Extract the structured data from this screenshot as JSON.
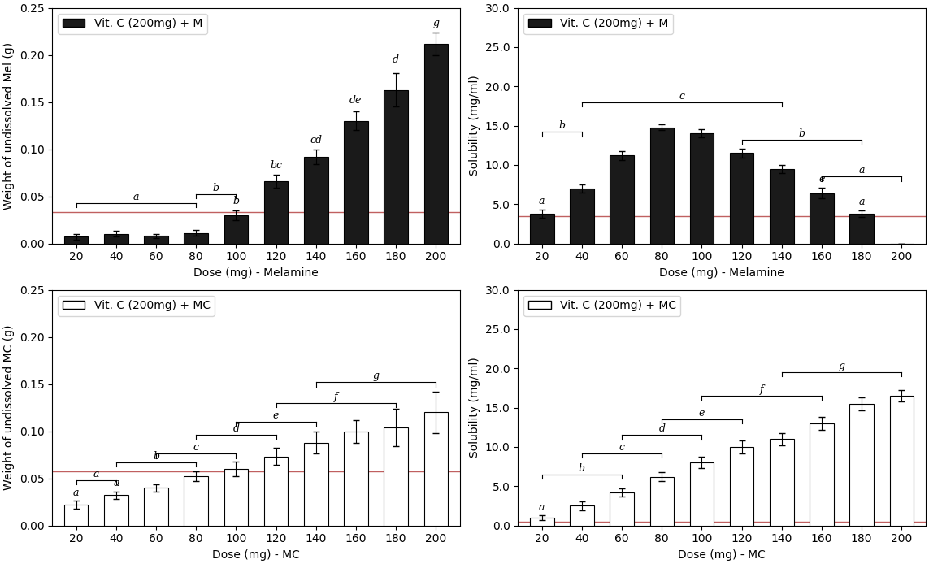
{
  "chart_data": [
    {
      "type": "bar",
      "categories": [
        "20",
        "40",
        "60",
        "80",
        "100",
        "120",
        "140",
        "160",
        "180",
        "200"
      ],
      "series": [
        {
          "name": "Vit. C (200mg) + M",
          "color": "#1a1a1a",
          "values": [
            0.007,
            0.01,
            0.008,
            0.011,
            0.03,
            0.066,
            0.092,
            0.13,
            0.163,
            0.212
          ],
          "errors": [
            0.003,
            0.003,
            0.002,
            0.003,
            0.005,
            0.007,
            0.008,
            0.01,
            0.018,
            0.012
          ]
        }
      ],
      "x_label": "Dose (mg) - Melamine",
      "y_label": "Weight of undissolved Mel (g)",
      "ylim": [
        0,
        0.25
      ],
      "yticks": [
        {
          "value": 0.0,
          "label": "0.00"
        },
        {
          "value": 0.05,
          "label": "0.05"
        },
        {
          "value": 0.1,
          "label": "0.10"
        },
        {
          "value": 0.15,
          "label": "0.15"
        },
        {
          "value": 0.2,
          "label": "0.20"
        },
        {
          "value": 0.25,
          "label": "0.25"
        }
      ],
      "reference_lines": [
        {
          "y": 0.033,
          "color": "#c06060"
        }
      ],
      "annotations": [
        {
          "category": "100",
          "y": 0.039,
          "text": "b"
        },
        {
          "category": "120",
          "y": 0.077,
          "text": "bc"
        },
        {
          "category": "140",
          "y": 0.104,
          "text": "cd"
        },
        {
          "category": "160",
          "y": 0.146,
          "text": "de"
        },
        {
          "category": "180",
          "y": 0.189,
          "text": "d"
        },
        {
          "category": "200",
          "y": 0.228,
          "text": "g"
        }
      ],
      "brackets": [
        {
          "start": "20",
          "end": "80",
          "y": 0.043,
          "label": "a"
        },
        {
          "start": "80",
          "end": "100",
          "y": 0.052,
          "label": "b"
        }
      ],
      "legend": "upper left"
    },
    {
      "type": "bar",
      "categories": [
        "20",
        "40",
        "60",
        "80",
        "100",
        "120",
        "140",
        "160",
        "180",
        "200"
      ],
      "series": [
        {
          "name": "Vit. C (200mg) + M",
          "color": "#1a1a1a",
          "values": [
            3.8,
            7.0,
            11.2,
            14.8,
            14.0,
            11.5,
            9.5,
            6.4,
            3.8,
            0.0
          ],
          "errors": [
            0.5,
            0.5,
            0.6,
            0.4,
            0.5,
            0.6,
            0.5,
            0.7,
            0.4,
            0.0
          ]
        }
      ],
      "x_label": "Dose (mg) - Melamine",
      "y_label": "Solubility (mg/ml)",
      "ylim": [
        0,
        30
      ],
      "yticks": [
        {
          "value": 0.0,
          "label": "0.0"
        },
        {
          "value": 5.0,
          "label": "5.0"
        },
        {
          "value": 10.0,
          "label": "10.0"
        },
        {
          "value": 15.0,
          "label": "15.0"
        },
        {
          "value": 20.0,
          "label": "20.0"
        },
        {
          "value": 25.0,
          "label": "25.0"
        },
        {
          "value": 30.0,
          "label": "30.0"
        }
      ],
      "reference_lines": [
        {
          "y": 3.5,
          "color": "#c06060"
        }
      ],
      "annotations": [
        {
          "category": "20",
          "y": 4.7,
          "text": "a"
        },
        {
          "category": "160",
          "y": 7.5,
          "text": "e"
        },
        {
          "category": "180",
          "y": 4.6,
          "text": "a"
        }
      ],
      "brackets": [
        {
          "start": "20",
          "end": "40",
          "y": 14.2,
          "label": "b"
        },
        {
          "start": "40",
          "end": "140",
          "y": 18.0,
          "label": "c"
        },
        {
          "start": "120",
          "end": "180",
          "y": 13.2,
          "label": "b"
        },
        {
          "start": "160",
          "end": "200",
          "y": 8.5,
          "label": "a"
        }
      ],
      "legend": "upper left"
    },
    {
      "type": "bar",
      "categories": [
        "20",
        "40",
        "60",
        "80",
        "100",
        "120",
        "140",
        "160",
        "180",
        "200"
      ],
      "series": [
        {
          "name": "Vit. C (200mg) + MC",
          "color": "#ffffff",
          "values": [
            0.022,
            0.032,
            0.04,
            0.052,
            0.06,
            0.073,
            0.088,
            0.1,
            0.104,
            0.12
          ],
          "errors": [
            0.004,
            0.004,
            0.004,
            0.005,
            0.008,
            0.009,
            0.012,
            0.012,
            0.02,
            0.022
          ]
        }
      ],
      "x_label": "Dose (mg) - MC",
      "y_label": "Weight of undissolved MC (g)",
      "ylim": [
        0,
        0.25
      ],
      "yticks": [
        {
          "value": 0.0,
          "label": "0.00"
        },
        {
          "value": 0.05,
          "label": "0.05"
        },
        {
          "value": 0.1,
          "label": "0.10"
        },
        {
          "value": 0.15,
          "label": "0.15"
        },
        {
          "value": 0.2,
          "label": "0.20"
        },
        {
          "value": 0.25,
          "label": "0.25"
        }
      ],
      "reference_lines": [
        {
          "y": 0.057,
          "color": "#c06060"
        }
      ],
      "annotations": [
        {
          "category": "20",
          "y": 0.029,
          "text": "a"
        },
        {
          "category": "40",
          "y": 0.039,
          "text": "a"
        }
      ],
      "brackets": [
        {
          "start": "20",
          "end": "40",
          "y": 0.048,
          "label": "a"
        },
        {
          "start": "40",
          "end": "80",
          "y": 0.067,
          "label": "b"
        },
        {
          "start": "60",
          "end": "100",
          "y": 0.076,
          "label": "c"
        },
        {
          "start": "80",
          "end": "120",
          "y": 0.096,
          "label": "d"
        },
        {
          "start": "100",
          "end": "140",
          "y": 0.11,
          "label": "e"
        },
        {
          "start": "120",
          "end": "180",
          "y": 0.13,
          "label": "f"
        },
        {
          "start": "140",
          "end": "200",
          "y": 0.152,
          "label": "g"
        }
      ],
      "legend": "upper left"
    },
    {
      "type": "bar",
      "categories": [
        "20",
        "40",
        "60",
        "80",
        "100",
        "120",
        "140",
        "160",
        "180",
        "200"
      ],
      "series": [
        {
          "name": "Vit. C (200mg) + MC",
          "color": "#ffffff",
          "values": [
            1.0,
            2.5,
            4.2,
            6.2,
            8.0,
            10.0,
            11.0,
            13.0,
            15.5,
            16.5
          ],
          "errors": [
            0.3,
            0.6,
            0.5,
            0.6,
            0.7,
            0.8,
            0.8,
            0.8,
            0.8,
            0.7
          ]
        }
      ],
      "x_label": "Dose (mg) - MC",
      "y_label": "Solubility (mg/ml)",
      "ylim": [
        0,
        30
      ],
      "yticks": [
        {
          "value": 0.0,
          "label": "0.0"
        },
        {
          "value": 5.0,
          "label": "5.0"
        },
        {
          "value": 10.0,
          "label": "10.0"
        },
        {
          "value": 15.0,
          "label": "15.0"
        },
        {
          "value": 20.0,
          "label": "20.0"
        },
        {
          "value": 25.0,
          "label": "25.0"
        },
        {
          "value": 30.0,
          "label": "30.0"
        }
      ],
      "reference_lines": [
        {
          "y": 0.5,
          "color": "#c06060"
        }
      ],
      "annotations": [
        {
          "category": "20",
          "y": 1.6,
          "text": "a"
        }
      ],
      "brackets": [
        {
          "start": "20",
          "end": "60",
          "y": 6.5,
          "label": "b"
        },
        {
          "start": "40",
          "end": "80",
          "y": 9.2,
          "label": "c"
        },
        {
          "start": "60",
          "end": "100",
          "y": 11.5,
          "label": "d"
        },
        {
          "start": "80",
          "end": "120",
          "y": 13.5,
          "label": "e"
        },
        {
          "start": "100",
          "end": "160",
          "y": 16.5,
          "label": "f"
        },
        {
          "start": "140",
          "end": "200",
          "y": 19.5,
          "label": "g"
        }
      ],
      "legend": "upper left"
    }
  ]
}
